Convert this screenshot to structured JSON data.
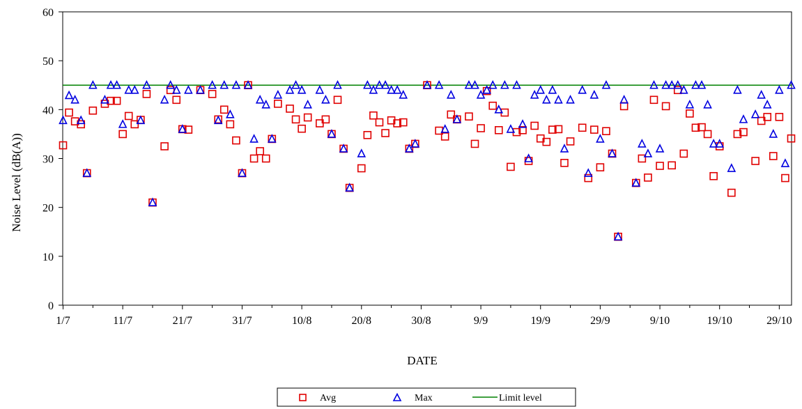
{
  "chart_data": {
    "type": "scatter",
    "xlabel": "DATE",
    "ylabel": "Noise Level (dB(A))",
    "ylim": [
      0,
      60
    ],
    "yticks": [
      0,
      10,
      20,
      30,
      40,
      50,
      60
    ],
    "xticks": [
      "1/7",
      "11/7",
      "21/7",
      "31/7",
      "10/8",
      "20/8",
      "30/8",
      "9/9",
      "19/9",
      "29/9",
      "9/10",
      "19/10",
      "29/10"
    ],
    "xrange": [
      "1/7",
      "31/10"
    ],
    "grid": false,
    "legend_position": "bottom",
    "colors": {
      "avg": "#e00000",
      "max": "#0000e0",
      "limit": "#008000"
    },
    "series": [
      {
        "name": "Avg",
        "marker": "square",
        "values": [
          32.7,
          39.4,
          37.6,
          37,
          27,
          39.8,
          null,
          41.2,
          41.8,
          41.8,
          35,
          38.7,
          37,
          37.9,
          43.2,
          21,
          null,
          32.5,
          44,
          42,
          36,
          35.9,
          null,
          44,
          null,
          43.2,
          38,
          40,
          37,
          33.7,
          27,
          45,
          30,
          31.5,
          30,
          34,
          41.2,
          null,
          40.2,
          38,
          36.1,
          38.4,
          null,
          37.2,
          38,
          35,
          42,
          32,
          24,
          null,
          28,
          34.8,
          38.8,
          37.4,
          35.2,
          37.8,
          37.2,
          37.4,
          32,
          33,
          null,
          45,
          null,
          35.7,
          34.5,
          39,
          38,
          null,
          38.6,
          33,
          36.2,
          43.8,
          40.8,
          35.8,
          39.4,
          28.3,
          35.4,
          35.8,
          29.5,
          36.7,
          34.1,
          33.4,
          35.9,
          36,
          29.1,
          33.5,
          null,
          36.3,
          26,
          35.9,
          28.2,
          35.6,
          31,
          14,
          40.7,
          null,
          25,
          30,
          26.1,
          42,
          28.5,
          40.7,
          28.6,
          44,
          31,
          39.2,
          36.3,
          36.4,
          35,
          26.4,
          32.5,
          null,
          23,
          35,
          35.4,
          null,
          29.5,
          37.7,
          38.5,
          30.5,
          38.5,
          26,
          34.1
        ]
      },
      {
        "name": "Max",
        "marker": "triangle",
        "values": [
          37.8,
          42.9,
          42,
          37.8,
          27,
          45,
          null,
          42,
          45,
          45,
          37,
          44,
          44,
          37.8,
          45,
          21,
          null,
          42,
          45,
          44,
          36,
          44,
          null,
          44,
          null,
          45,
          37.8,
          45,
          39,
          45,
          27,
          45,
          34,
          42,
          41,
          34,
          43,
          null,
          44,
          45,
          44,
          41,
          null,
          44,
          42,
          35,
          45,
          32,
          24,
          null,
          31,
          45,
          44,
          45,
          45,
          44,
          44,
          43,
          32,
          33,
          null,
          45,
          null,
          45,
          36,
          43,
          38,
          null,
          45,
          45,
          43,
          44,
          45,
          40,
          45,
          36,
          45,
          37,
          30,
          43,
          44,
          42,
          44,
          42,
          32,
          42,
          null,
          44,
          27,
          43,
          34,
          45,
          31,
          14,
          42,
          null,
          25,
          33,
          31,
          45,
          32,
          45,
          45,
          45,
          44,
          41,
          45,
          45,
          41,
          33,
          33,
          null,
          28,
          44,
          38,
          null,
          39,
          43,
          41,
          35,
          44,
          29,
          45
        ]
      },
      {
        "name": "Limit level",
        "marker": "line",
        "value": 45
      }
    ]
  }
}
